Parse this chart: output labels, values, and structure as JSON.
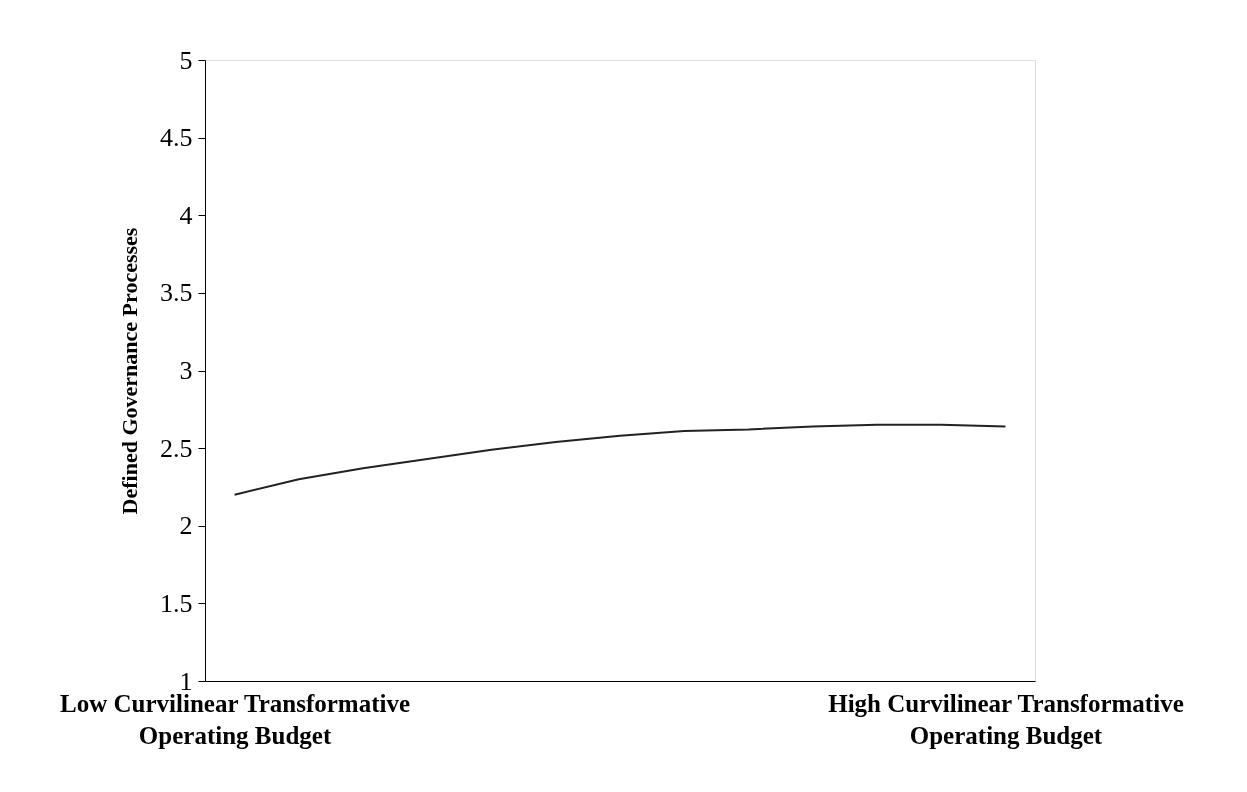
{
  "chart_data": {
    "type": "line",
    "ylabel": "Defined Governance Processes",
    "categories": [
      "Low Curvilinear Transformative Operating Budget",
      null,
      null,
      null,
      null,
      null,
      null,
      null,
      null,
      null,
      null,
      null,
      "High Curvilinear Transformative Operating Budget"
    ],
    "series": [
      {
        "color": "#222222",
        "values": [
          2.2,
          2.3,
          2.37,
          2.43,
          2.49,
          2.54,
          2.58,
          2.61,
          2.62,
          2.64,
          2.65,
          2.65,
          2.64
        ]
      }
    ],
    "ylim": [
      1,
      5
    ],
    "yticks": [
      1,
      1.5,
      2,
      2.5,
      3,
      3.5,
      4,
      4.5,
      5
    ],
    "grid": false,
    "legend": false,
    "marker": "none",
    "line_style": "solid"
  }
}
